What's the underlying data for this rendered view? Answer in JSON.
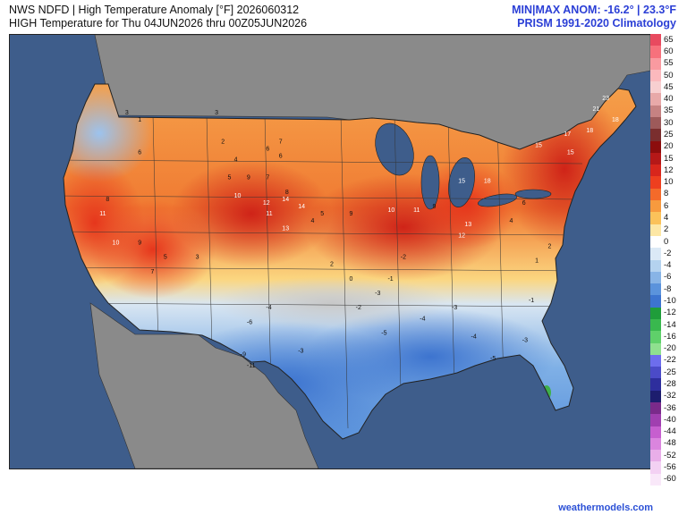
{
  "header": {
    "line1": "NWS NDFD | High Temperature Anomaly [°F] 2026060312",
    "line2": "HIGH Temperature for Thu 04JUN2026 thru 00Z05JUN2026",
    "right_line1": "MIN|MAX ANOM: -16.2° | 23.3°F",
    "right_line2": "PRISM 1991-2020 Climatology"
  },
  "footer": {
    "site": "weathermodels.com"
  },
  "colorbar": {
    "labels": [
      "65",
      "60",
      "55",
      "50",
      "45",
      "40",
      "35",
      "30",
      "25",
      "20",
      "15",
      "12",
      "10",
      "8",
      "6",
      "4",
      "2",
      "0",
      "-2",
      "-4",
      "-6",
      "-8",
      "-10",
      "-12",
      "-14",
      "-16",
      "-20",
      "-22",
      "-25",
      "-28",
      "-32",
      "-36",
      "-40",
      "-44",
      "-48",
      "-52",
      "-56",
      "-60"
    ],
    "colors": [
      "#e84a5f",
      "#f7717c",
      "#f99aa0",
      "#fbb9bd",
      "#f7cfd0",
      "#e8a9a9",
      "#c68282",
      "#9d5a5a",
      "#7a2e2e",
      "#8c0d0d",
      "#b51818",
      "#d8261c",
      "#ee3f1f",
      "#f46a2a",
      "#f79a3e",
      "#fbc25a",
      "#fde7a5",
      "#ffffff",
      "#dbe9f6",
      "#b4d2ef",
      "#88b4e6",
      "#5b93dc",
      "#3d74cf",
      "#1f9d3a",
      "#39b84e",
      "#5fd06a",
      "#8fe08f",
      "#6d6ded",
      "#4b4bc8",
      "#2e2e9d",
      "#1d1d6e",
      "#7a2a8a",
      "#a03fb0",
      "#c65fcf",
      "#da85de",
      "#e9aee9",
      "#f3d1f3",
      "#f9e8f9"
    ]
  },
  "map": {
    "ocean_color": "#3e5d8b",
    "land_outside_color": "#8a8a8a",
    "anomaly_labels": [
      {
        "v": "3",
        "x": 36,
        "y": 22
      },
      {
        "v": "1",
        "x": 40,
        "y": 24
      },
      {
        "v": "6",
        "x": 40,
        "y": 33
      },
      {
        "v": "2",
        "x": 66,
        "y": 30
      },
      {
        "v": "4",
        "x": 70,
        "y": 35
      },
      {
        "v": "3",
        "x": 64,
        "y": 22
      },
      {
        "v": "5",
        "x": 68,
        "y": 40
      },
      {
        "v": "10",
        "x": 70,
        "y": 45
      },
      {
        "v": "9",
        "x": 74,
        "y": 40
      },
      {
        "v": "6",
        "x": 84,
        "y": 34
      },
      {
        "v": "7",
        "x": 84,
        "y": 30
      },
      {
        "v": "8",
        "x": 86,
        "y": 44
      },
      {
        "v": "7",
        "x": 80,
        "y": 40
      },
      {
        "v": "6",
        "x": 80,
        "y": 32
      },
      {
        "v": "12",
        "x": 79,
        "y": 47
      },
      {
        "v": "14",
        "x": 85,
        "y": 46
      },
      {
        "v": "11",
        "x": 80,
        "y": 50
      },
      {
        "v": "13",
        "x": 85,
        "y": 54
      },
      {
        "v": "14",
        "x": 90,
        "y": 48
      },
      {
        "v": "4",
        "x": 94,
        "y": 52
      },
      {
        "v": "5",
        "x": 97,
        "y": 50
      },
      {
        "v": "9",
        "x": 106,
        "y": 50
      },
      {
        "v": "10",
        "x": 118,
        "y": 49
      },
      {
        "v": "11",
        "x": 126,
        "y": 49
      },
      {
        "v": "12",
        "x": 140,
        "y": 56
      },
      {
        "v": "13",
        "x": 142,
        "y": 53
      },
      {
        "v": "15",
        "x": 140,
        "y": 41
      },
      {
        "v": "18",
        "x": 148,
        "y": 41
      },
      {
        "v": "15",
        "x": 164,
        "y": 31
      },
      {
        "v": "15",
        "x": 174,
        "y": 33
      },
      {
        "v": "17",
        "x": 173,
        "y": 28
      },
      {
        "v": "18",
        "x": 180,
        "y": 27
      },
      {
        "v": "21",
        "x": 182,
        "y": 21
      },
      {
        "v": "23",
        "x": 185,
        "y": 18
      },
      {
        "v": "18",
        "x": 188,
        "y": 24
      },
      {
        "v": "-2",
        "x": 122,
        "y": 62
      },
      {
        "v": "-1",
        "x": 118,
        "y": 68
      },
      {
        "v": "-3",
        "x": 114,
        "y": 72
      },
      {
        "v": "-4",
        "x": 80,
        "y": 76
      },
      {
        "v": "-6",
        "x": 74,
        "y": 80
      },
      {
        "v": "-9",
        "x": 72,
        "y": 89
      },
      {
        "v": "-11",
        "x": 74,
        "y": 92
      },
      {
        "v": "-3",
        "x": 90,
        "y": 88
      },
      {
        "v": "-2",
        "x": 108,
        "y": 76
      },
      {
        "v": "-4",
        "x": 144,
        "y": 84
      },
      {
        "v": "-5",
        "x": 150,
        "y": 90
      },
      {
        "v": "-3",
        "x": 138,
        "y": 76
      },
      {
        "v": "-4",
        "x": 128,
        "y": 79
      },
      {
        "v": "-5",
        "x": 116,
        "y": 83
      },
      {
        "v": "-1",
        "x": 162,
        "y": 74
      },
      {
        "v": "1",
        "x": 164,
        "y": 63
      },
      {
        "v": "2",
        "x": 168,
        "y": 59
      },
      {
        "v": "4",
        "x": 156,
        "y": 52
      },
      {
        "v": "6",
        "x": 160,
        "y": 47
      },
      {
        "v": "9",
        "x": 132,
        "y": 48
      },
      {
        "v": "8",
        "x": 30,
        "y": 46
      },
      {
        "v": "11",
        "x": 28,
        "y": 50
      },
      {
        "v": "10",
        "x": 32,
        "y": 58
      },
      {
        "v": "9",
        "x": 40,
        "y": 58
      },
      {
        "v": "7",
        "x": 44,
        "y": 66
      },
      {
        "v": "5",
        "x": 48,
        "y": 62
      },
      {
        "v": "3",
        "x": 58,
        "y": 62
      },
      {
        "v": "2",
        "x": 100,
        "y": 64
      },
      {
        "v": "0",
        "x": 106,
        "y": 68
      },
      {
        "v": "-3",
        "x": 160,
        "y": 85
      }
    ]
  }
}
